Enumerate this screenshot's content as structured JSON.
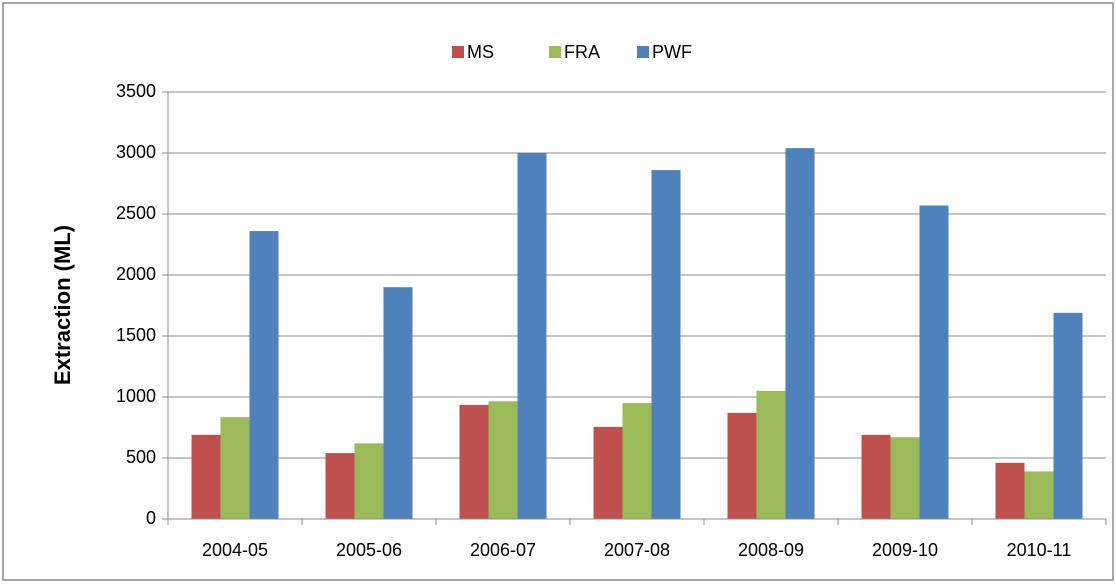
{
  "chart_data": {
    "type": "bar",
    "categories": [
      "2004-05",
      "2005-06",
      "2006-07",
      "2007-08",
      "2008-09",
      "2009-10",
      "2010-11"
    ],
    "y_label": "Extraction (ML)",
    "series": [
      {
        "name": "MS",
        "color": "#c0504d",
        "values": [
          690,
          540,
          935,
          755,
          870,
          690,
          460
        ]
      },
      {
        "name": "FRA",
        "color": "#9bbb59",
        "values": [
          835,
          620,
          965,
          950,
          1050,
          670,
          390
        ]
      },
      {
        "name": "PWF",
        "color": "#4f81bd",
        "values": [
          2360,
          1900,
          3000,
          2860,
          3040,
          2570,
          1690
        ]
      }
    ],
    "ylim": [
      0,
      3500
    ],
    "yticks": [
      0,
      500,
      1000,
      1500,
      2000,
      2500,
      3000,
      3500
    ],
    "grid": true,
    "legend": "top"
  }
}
